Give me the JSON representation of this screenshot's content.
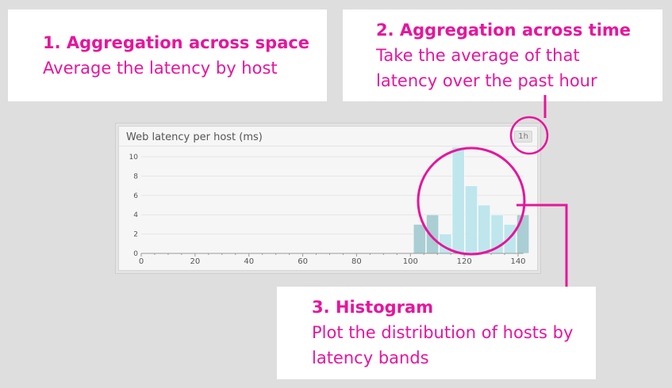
{
  "callouts": {
    "space": {
      "title": "1. Aggregation across space",
      "text": "Average the latency by host"
    },
    "time": {
      "title": "2. Aggregation across time",
      "line1": "Take the average of that",
      "line2": "latency over the past hour"
    },
    "histogram": {
      "title": "3. Histogram",
      "line1": "Plot the distribution of hosts by",
      "line2": "latency bands"
    }
  },
  "widget": {
    "title": "Web latency per host (ms)",
    "time_range": "1h"
  },
  "colors": {
    "accent": "#e5169b",
    "bar": "#bfe6ed",
    "bar_muted": "#a9ced3"
  },
  "chart_data": {
    "type": "bar",
    "title": "Web latency per host (ms)",
    "xlabel": "",
    "ylabel": "",
    "xlim": [
      0,
      142
    ],
    "ylim": [
      0,
      10
    ],
    "xticks": [
      0,
      20,
      40,
      60,
      80,
      100,
      120,
      140
    ],
    "yticks": [
      0,
      2,
      4,
      6,
      8,
      10
    ],
    "bin_width": 4.8,
    "bins": [
      {
        "start": 101,
        "count": 3
      },
      {
        "start": 105.8,
        "count": 4
      },
      {
        "start": 110.6,
        "count": 2
      },
      {
        "start": 115.4,
        "count": 11
      },
      {
        "start": 120.2,
        "count": 7
      },
      {
        "start": 125,
        "count": 5
      },
      {
        "start": 129.8,
        "count": 4
      },
      {
        "start": 134.6,
        "count": 3
      },
      {
        "start": 139.4,
        "count": 4
      }
    ],
    "grid": true
  }
}
